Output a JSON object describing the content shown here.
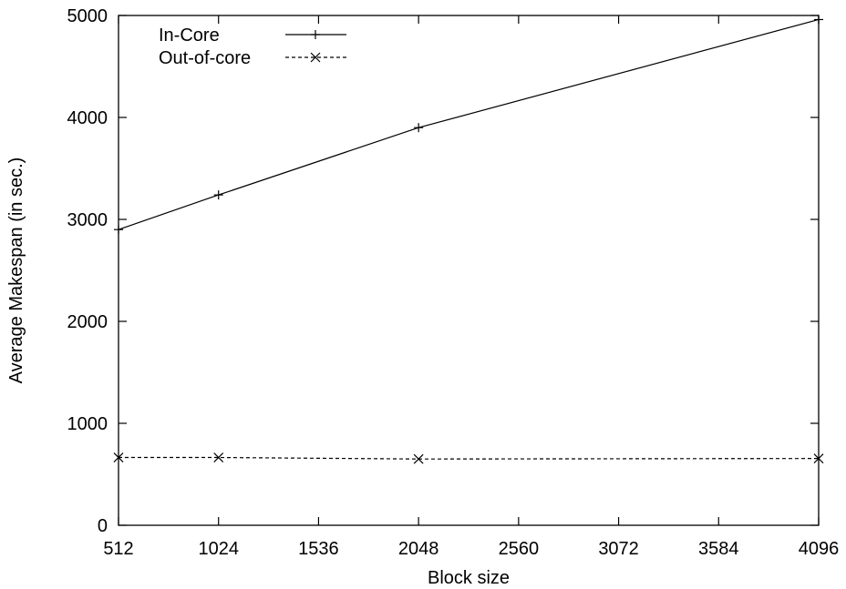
{
  "chart_data": {
    "type": "line",
    "title": "",
    "xlabel": "Block size",
    "ylabel": "Average Makespan (in sec.)",
    "xlim": [
      512,
      4096
    ],
    "ylim": [
      0,
      5000
    ],
    "xticks": [
      512,
      1024,
      1536,
      2048,
      2560,
      3072,
      3584,
      4096
    ],
    "yticks": [
      0,
      1000,
      2000,
      3000,
      4000,
      5000
    ],
    "grid": false,
    "legend_position": "top-left",
    "series": [
      {
        "name": "In-Core",
        "x": [
          512,
          1024,
          2048,
          4096
        ],
        "y": [
          2900,
          3240,
          3900,
          4960
        ],
        "line_style": "solid",
        "marker": "plus",
        "color": "#000000"
      },
      {
        "name": "Out-of-core",
        "x": [
          512,
          1024,
          2048,
          4096
        ],
        "y": [
          665,
          665,
          650,
          655
        ],
        "line_style": "dashed",
        "marker": "cross",
        "color": "#000000"
      }
    ]
  }
}
